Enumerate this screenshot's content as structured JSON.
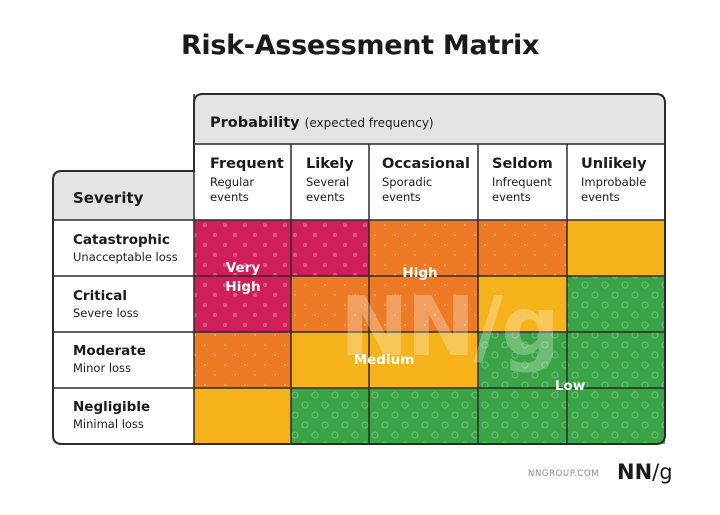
{
  "title": "Risk-Assessment Matrix",
  "probability": {
    "label": "Probability",
    "sublabel": "(expected frequency)"
  },
  "severity_label": "Severity",
  "columns": [
    {
      "name": "Frequent",
      "desc1": "Regular",
      "desc2": "events"
    },
    {
      "name": "Likely",
      "desc1": "Several",
      "desc2": "events"
    },
    {
      "name": "Occasional",
      "desc1": "Sporadic",
      "desc2": "events"
    },
    {
      "name": "Seldom",
      "desc1": "Infrequent",
      "desc2": "events"
    },
    {
      "name": "Unlikely",
      "desc1": "Improbable",
      "desc2": "events"
    }
  ],
  "rows": [
    {
      "name": "Catastrophic",
      "desc": "Unacceptable loss"
    },
    {
      "name": "Critical",
      "desc": "Severe loss"
    },
    {
      "name": "Moderate",
      "desc": "Minor loss"
    },
    {
      "name": "Negligible",
      "desc": "Minimal loss"
    }
  ],
  "levels": {
    "very_high_1": "Very",
    "very_high_2": "High",
    "high": "High",
    "medium": "Medium",
    "low": "Low"
  },
  "colors": {
    "very_high": "#d01e5b",
    "high": "#ee7a26",
    "medium": "#f6b21b",
    "low": "#3aa446",
    "header_gray": "#e4e4e4",
    "border": "#2b2b2b"
  },
  "watermark": "NN/g",
  "footer": {
    "site": "NNGROUP.COM",
    "logo_main": "NN",
    "logo_slash": "/g"
  }
}
